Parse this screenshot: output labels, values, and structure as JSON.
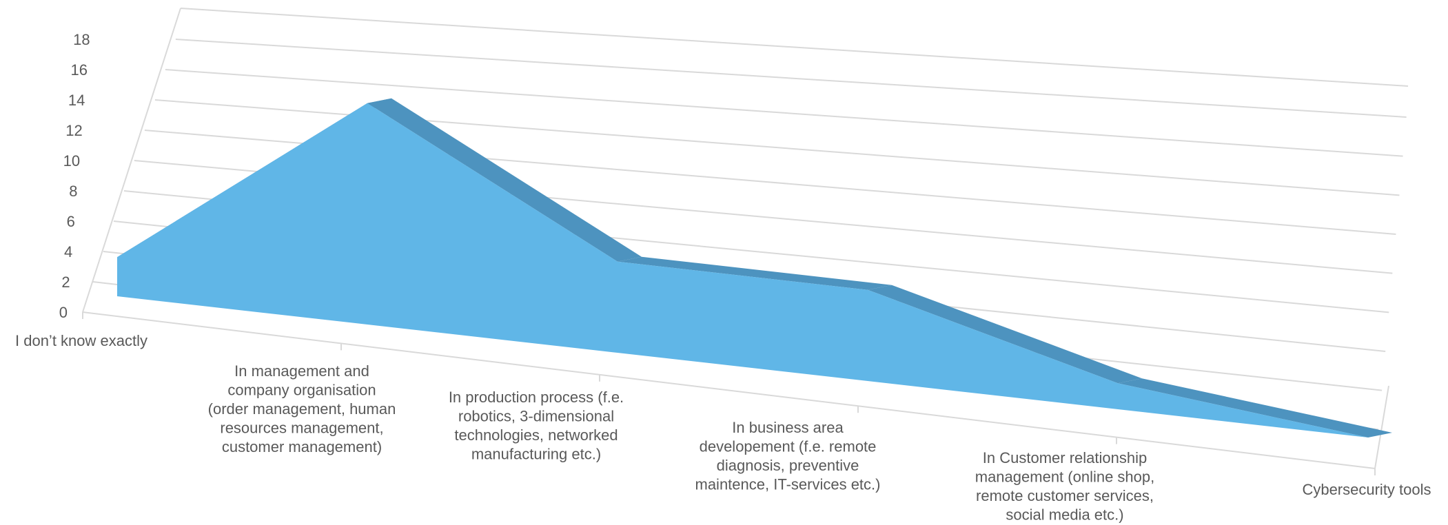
{
  "chart_data": {
    "type": "area",
    "categories": [
      "I don’t know exactly",
      "In management and company organisation (order management, human resources management, customer management)",
      "In production process (f.e. robotics, 3-dimensional technologies, networked manufacturing etc.)",
      "In business area developement (f.e. remote diagnosis, preventive maintence, IT-services etc.)",
      "In Customer relationship management (online shop, remote customer services, social media etc.)",
      "Cybersecurity tools"
    ],
    "category_lines": [
      [
        "I don’t know exactly"
      ],
      [
        "In management and",
        "company organisation",
        "(order management, human",
        "resources management,",
        "customer management)"
      ],
      [
        "In production process (f.e.",
        "robotics, 3-dimensional",
        "technologies, networked",
        "manufacturing etc.)"
      ],
      [
        "In business area",
        "developement (f.e. remote",
        "diagnosis, preventive",
        "maintence, IT-services etc.)"
      ],
      [
        "In Customer relationship",
        "management (online shop,",
        "remote customer services,",
        "social media etc.)"
      ],
      [
        "Cybersecurity tools"
      ]
    ],
    "series": [
      {
        "values": [
          3,
          17,
          7,
          7,
          2,
          0
        ]
      }
    ],
    "ylim": [
      0,
      18
    ],
    "yticks": [
      0,
      2,
      4,
      6,
      8,
      10,
      12,
      14,
      16,
      18
    ],
    "grid": true,
    "style": "3d",
    "colors": {
      "front": "#60b6e7",
      "top": "#4d93bf",
      "side": "#437fa6",
      "grid": "#d9d9d9",
      "text": "#595959"
    }
  }
}
